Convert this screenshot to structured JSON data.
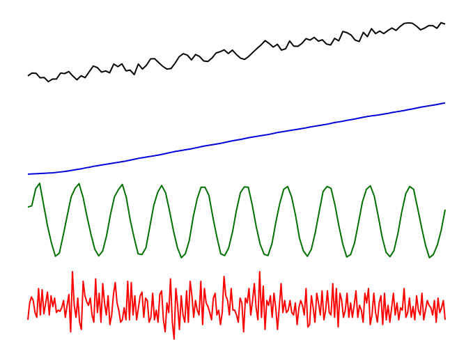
{
  "chart_data": {
    "type": "line",
    "title": "",
    "xlabel": "",
    "ylabel": "",
    "grid": false,
    "legend": "none",
    "axes_visible": false,
    "x_start": 0,
    "x_step": 1,
    "stacked_panels": [
      {
        "name": "",
        "color": "#000000",
        "values": [
          1.0,
          1.22,
          1.2,
          0.86,
          0.88,
          0.57,
          0.76,
          0.77,
          1.22,
          1.18,
          1.33,
          0.99,
          0.71,
          1.01,
          0.87,
          1.32,
          1.75,
          1.63,
          1.29,
          1.38,
          1.24,
          1.9,
          1.7,
          1.91,
          1.38,
          1.44,
          1.1,
          1.9,
          1.52,
          1.81,
          2.29,
          2.3,
          2.0,
          1.72,
          1.52,
          1.56,
          1.97,
          2.46,
          2.68,
          2.57,
          2.21,
          2.62,
          2.46,
          2.13,
          2.09,
          2.35,
          2.73,
          2.83,
          2.97,
          2.69,
          2.95,
          2.61,
          2.34,
          2.25,
          2.48,
          2.78,
          3.07,
          3.34,
          3.67,
          3.45,
          3.18,
          3.39,
          2.95,
          3.05,
          3.64,
          3.25,
          3.24,
          3.46,
          3.82,
          3.71,
          3.91,
          3.63,
          3.73,
          3.41,
          3.34,
          3.84,
          3.65,
          4.36,
          4.27,
          4.09,
          3.71,
          3.6,
          4.29,
          3.97,
          4.57,
          4.2,
          4.39,
          4.2,
          4.43,
          4.62,
          4.44,
          4.74,
          4.97,
          5.01,
          4.98,
          4.76,
          4.48,
          4.62,
          4.8,
          4.8,
          4.6,
          5.02,
          4.92
        ],
        "ylim": [
          0,
          6
        ]
      },
      {
        "name": "",
        "color": "#0000dd",
        "values": [
          0.0,
          0.01,
          0.02,
          0.03,
          0.04,
          0.05,
          0.06,
          0.08,
          0.1,
          0.12,
          0.15,
          0.18,
          0.21,
          0.24,
          0.28,
          0.31,
          0.35,
          0.38,
          0.41,
          0.44,
          0.47,
          0.5,
          0.53,
          0.56,
          0.59,
          0.63,
          0.67,
          0.71,
          0.74,
          0.77,
          0.8,
          0.83,
          0.86,
          0.9,
          0.94,
          0.98,
          1.02,
          1.05,
          1.08,
          1.11,
          1.14,
          1.18,
          1.22,
          1.26,
          1.29,
          1.32,
          1.35,
          1.38,
          1.42,
          1.46,
          1.5,
          1.53,
          1.56,
          1.6,
          1.64,
          1.67,
          1.7,
          1.73,
          1.76,
          1.79,
          1.83,
          1.87,
          1.9,
          1.93,
          1.96,
          1.99,
          2.02,
          2.05,
          2.08,
          2.12,
          2.15,
          2.18,
          2.21,
          2.24,
          2.28,
          2.32,
          2.35,
          2.38,
          2.42,
          2.45,
          2.48,
          2.52,
          2.56,
          2.59,
          2.62,
          2.64,
          2.67,
          2.7,
          2.73,
          2.77,
          2.8,
          2.83,
          2.86,
          2.9,
          2.93,
          2.97,
          3.01,
          3.04,
          3.07,
          3.1,
          3.13,
          3.17,
          3.2
        ],
        "ylim": [
          0,
          3.6
        ]
      },
      {
        "name": "",
        "color": "#007000",
        "values": [
          0.33,
          0.37,
          0.85,
          1.0,
          0.4,
          -0.2,
          -0.68,
          -1.05,
          -0.96,
          -0.45,
          0.09,
          0.62,
          0.86,
          0.99,
          0.62,
          0.08,
          -0.42,
          -0.85,
          -1.04,
          -0.9,
          -0.47,
          0.13,
          0.62,
          0.82,
          0.97,
          0.61,
          -0.03,
          -0.53,
          -0.98,
          -1.0,
          -0.81,
          -0.21,
          0.39,
          0.75,
          0.94,
          0.73,
          0.22,
          -0.34,
          -0.81,
          -1.09,
          -0.98,
          -0.61,
          0.05,
          0.56,
          0.89,
          0.89,
          0.66,
          0.05,
          -0.5,
          -0.98,
          -1.03,
          -0.82,
          -0.36,
          0.25,
          0.74,
          0.9,
          0.89,
          0.39,
          -0.21,
          -0.71,
          -0.99,
          -1.03,
          -0.7,
          -0.09,
          0.44,
          0.83,
          0.91,
          0.62,
          0.1,
          -0.54,
          -0.9,
          -1.05,
          -0.86,
          -0.39,
          0.2,
          0.77,
          0.91,
          0.86,
          0.4,
          -0.19,
          -0.71,
          -1.07,
          -1.0,
          -0.67,
          -0.1,
          0.48,
          0.83,
          0.93,
          0.64,
          0.08,
          -0.51,
          -0.94,
          -1.06,
          -0.89,
          -0.41,
          0.21,
          0.71,
          0.91,
          0.83,
          0.31,
          -0.23,
          -0.73,
          -1.09,
          -1.0,
          -0.74,
          -0.32,
          0.26
        ],
        "ylim": [
          -1.15,
          1.1
        ]
      },
      {
        "name": "",
        "color": "#ff0000",
        "values": [
          -0.5,
          0.2,
          0.45,
          0.3,
          -0.2,
          -0.4,
          0.8,
          -0.3,
          0.75,
          -0.25,
          0.2,
          0.65,
          -0.3,
          0.5,
          0.05,
          0.4,
          -0.2,
          -0.1,
          -0.15,
          0.0,
          0.3,
          -0.4,
          0.1,
          0.55,
          -1.0,
          1.5,
          0.1,
          -0.4,
          0.4,
          -0.6,
          -0.9,
          1.1,
          0.5,
          0.25,
          0.1,
          0.4,
          -0.3,
          -0.6,
          1.2,
          -0.2,
          0.6,
          -0.6,
          1.0,
          0.2,
          -0.3,
          0.5,
          -0.7,
          -0.3,
          0.55,
          1.05,
          0.2,
          -0.1,
          -0.6,
          -0.5,
          0.0,
          -0.5,
          1.1,
          -0.5,
          1.05,
          -0.3,
          0.5,
          -0.5,
          0.0,
          0.5,
          0.65,
          -0.4,
          0.4,
          0.3,
          -0.6,
          -0.4,
          0.6,
          -0.5,
          -0.1,
          -0.6,
          0.55,
          0.7,
          -0.5,
          -1.0,
          0.2,
          -0.2,
          1.2,
          -0.6,
          -1.3,
          0.8,
          0.1,
          -0.9,
          0.5,
          -0.3,
          -0.6,
          0.7,
          -0.6,
          1.1,
          0.5,
          -0.4,
          0.3,
          -0.1,
          -0.3,
          1.1,
          -0.7,
          0.8,
          0.2,
          0.05,
          -0.2,
          -0.5,
          0.4,
          0.6,
          -0.3,
          -0.1,
          -0.7,
          -0.2,
          1.3,
          0.5,
          0.3,
          -0.3,
          0.8,
          -0.1,
          -0.1,
          -0.3,
          -0.6,
          0.4,
          0.2,
          -1.0,
          0.4,
          0.2,
          0.8,
          -0.3,
          0.3,
          1.0,
          0.0,
          -0.5,
          1.5,
          -0.4,
          0.9,
          -0.9,
          0.3,
          0.1,
          0.5,
          -0.4,
          0.6,
          0.0,
          -0.9,
          0.05,
          1.0,
          -0.2,
          0.3,
          -0.2,
          -0.1,
          0.3,
          -0.2,
          -0.3,
          0.2,
          -0.7,
          0.0,
          0.3,
          0.1,
          -0.3,
          0.8,
          -0.8,
          -0.7,
          0.5,
          0.0,
          -0.6,
          0.6,
          0.2,
          -0.3,
          0.7,
          -0.5,
          -0.1,
          0.7,
          -0.2,
          -0.3,
          1.0,
          -0.4,
          0.8,
          -0.8,
          0.6,
          0.3,
          -0.4,
          -0.1,
          0.6,
          -0.4,
          0.2,
          -0.4,
          0.1,
          0.7,
          -0.4,
          0.1,
          -0.1,
          -0.6,
          0.6,
          0.2,
          0.8,
          -0.7,
          -0.3,
          0.6,
          -0.2,
          -0.6,
          0.2,
          0.5,
          -0.7,
          0.6,
          -0.5,
          0.1,
          -0.6,
          0.0,
          0.6,
          -0.3,
          0.2,
          -0.5,
          0.0,
          -0.1,
          0.8,
          -0.4,
          -0.2,
          0.4,
          -0.4,
          0.05,
          -0.5,
          0.5,
          -0.1,
          -0.3,
          0.6,
          -0.5,
          -0.1,
          0.3,
          0.1,
          0.0,
          -0.3,
          0.3,
          -0.6,
          0.4,
          -0.2,
          0.0,
          0.3,
          -0.5
        ],
        "ylim": [
          -1.6,
          1.7
        ]
      }
    ]
  }
}
